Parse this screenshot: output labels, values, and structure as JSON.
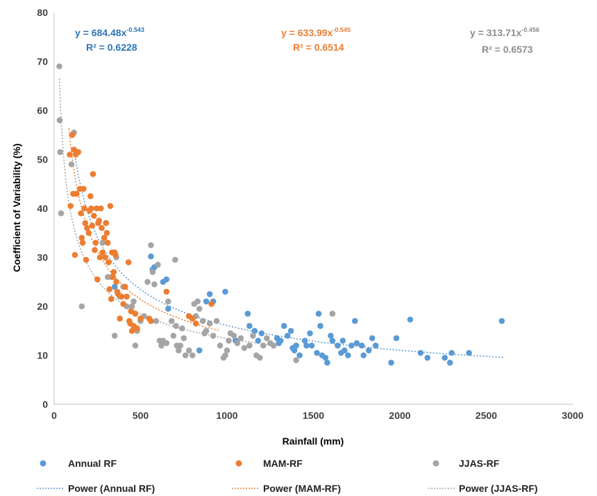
{
  "chart_data": {
    "type": "scatter",
    "title": "",
    "xlabel": "Rainfall (mm)",
    "ylabel": "Coefficient of Variability (%)",
    "xlim": [
      0,
      3000
    ],
    "ylim": [
      0,
      80
    ],
    "x_ticks": [
      "0",
      "500",
      "1000",
      "1500",
      "2000",
      "2500",
      "3000"
    ],
    "y_ticks": [
      "0",
      "10",
      "20",
      "30",
      "40",
      "50",
      "60",
      "70",
      "80"
    ],
    "grid": false,
    "legend_position": "bottom",
    "series": [
      {
        "name": "Annual RF",
        "color": "#5b9bd5",
        "trend_label": "Power (Annual RF)",
        "fit": {
          "a": 684.48,
          "b": -0.543,
          "x_range": [
            120,
            2600
          ]
        },
        "equation": {
          "prefix": "y = 684.48x",
          "exponent": "-0.543",
          "r2": "R² = 0.6228"
        },
        "points": [
          [
            350,
            24
          ],
          [
            560,
            30.2
          ],
          [
            570,
            27.5
          ],
          [
            580,
            28
          ],
          [
            630,
            25
          ],
          [
            650,
            25.5
          ],
          [
            660,
            19.5
          ],
          [
            840,
            11
          ],
          [
            880,
            21
          ],
          [
            900,
            22.5
          ],
          [
            920,
            21
          ],
          [
            990,
            23
          ],
          [
            1050,
            13
          ],
          [
            1120,
            18.5
          ],
          [
            1130,
            16
          ],
          [
            1160,
            15
          ],
          [
            1180,
            13
          ],
          [
            1200,
            14.5
          ],
          [
            1290,
            13.5
          ],
          [
            1300,
            12.5
          ],
          [
            1310,
            13
          ],
          [
            1330,
            16
          ],
          [
            1350,
            14
          ],
          [
            1370,
            15
          ],
          [
            1380,
            11.5
          ],
          [
            1390,
            11
          ],
          [
            1400,
            12
          ],
          [
            1420,
            10
          ],
          [
            1450,
            13
          ],
          [
            1460,
            12
          ],
          [
            1480,
            14.5
          ],
          [
            1490,
            12
          ],
          [
            1520,
            10.5
          ],
          [
            1530,
            18.5
          ],
          [
            1540,
            16
          ],
          [
            1550,
            10
          ],
          [
            1570,
            9.5
          ],
          [
            1580,
            8.5
          ],
          [
            1600,
            14
          ],
          [
            1610,
            13
          ],
          [
            1640,
            12
          ],
          [
            1660,
            10.5
          ],
          [
            1670,
            13
          ],
          [
            1680,
            11
          ],
          [
            1700,
            10
          ],
          [
            1720,
            12
          ],
          [
            1740,
            17
          ],
          [
            1750,
            12.5
          ],
          [
            1780,
            12
          ],
          [
            1790,
            10
          ],
          [
            1820,
            11
          ],
          [
            1840,
            13.5
          ],
          [
            1860,
            12
          ],
          [
            1950,
            8.5
          ],
          [
            1980,
            13.5
          ],
          [
            2060,
            17.3
          ],
          [
            2120,
            10.5
          ],
          [
            2160,
            9.5
          ],
          [
            2260,
            9.5
          ],
          [
            2290,
            8.5
          ],
          [
            2300,
            10.5
          ],
          [
            2400,
            10.5
          ],
          [
            2590,
            17
          ]
        ]
      },
      {
        "name": "MAM-RF",
        "color": "#ed7d31",
        "trend_label": "Power (MAM-RF)",
        "fit": {
          "a": 633.99,
          "b": -0.545,
          "x_range": [
            85,
            950
          ]
        },
        "equation": {
          "prefix": "y = 633.99x",
          "exponent": "-0.545",
          "r2": "R² = 0.6514"
        },
        "points": [
          [
            90,
            51
          ],
          [
            95,
            40.5
          ],
          [
            105,
            55
          ],
          [
            110,
            43
          ],
          [
            115,
            52
          ],
          [
            120,
            30.5
          ],
          [
            125,
            51
          ],
          [
            130,
            43
          ],
          [
            140,
            51.5
          ],
          [
            150,
            44
          ],
          [
            155,
            39
          ],
          [
            160,
            34
          ],
          [
            165,
            33
          ],
          [
            170,
            44
          ],
          [
            175,
            40
          ],
          [
            180,
            37
          ],
          [
            185,
            29.5
          ],
          [
            190,
            36
          ],
          [
            200,
            35
          ],
          [
            205,
            39.5
          ],
          [
            210,
            42.5
          ],
          [
            215,
            40
          ],
          [
            220,
            36.5
          ],
          [
            225,
            47
          ],
          [
            230,
            38.5
          ],
          [
            235,
            31.5
          ],
          [
            240,
            33
          ],
          [
            245,
            40
          ],
          [
            250,
            25.5
          ],
          [
            255,
            37
          ],
          [
            260,
            37.5
          ],
          [
            265,
            30
          ],
          [
            270,
            40
          ],
          [
            275,
            36
          ],
          [
            280,
            31
          ],
          [
            290,
            34
          ],
          [
            295,
            30
          ],
          [
            300,
            37
          ],
          [
            305,
            35
          ],
          [
            310,
            33
          ],
          [
            315,
            29
          ],
          [
            320,
            23.5
          ],
          [
            325,
            40.5
          ],
          [
            330,
            21.5
          ],
          [
            335,
            31
          ],
          [
            340,
            26
          ],
          [
            345,
            27
          ],
          [
            350,
            31
          ],
          [
            355,
            30.5
          ],
          [
            360,
            25
          ],
          [
            365,
            23
          ],
          [
            370,
            22.5
          ],
          [
            380,
            17.5
          ],
          [
            390,
            22
          ],
          [
            400,
            20.5
          ],
          [
            410,
            24
          ],
          [
            420,
            22
          ],
          [
            430,
            29
          ],
          [
            435,
            17
          ],
          [
            440,
            16.5
          ],
          [
            445,
            19
          ],
          [
            450,
            15
          ],
          [
            460,
            16
          ],
          [
            470,
            18.5
          ],
          [
            480,
            15.5
          ],
          [
            500,
            17.5
          ],
          [
            550,
            17.5
          ],
          [
            560,
            17
          ],
          [
            650,
            23
          ],
          [
            780,
            18
          ],
          [
            800,
            17.5
          ],
          [
            820,
            16.5
          ],
          [
            910,
            20.5
          ]
        ]
      },
      {
        "name": "JJAS-RF",
        "color": "#a5a5a5",
        "trend_label": "Power (JJAS-RF)",
        "fit": {
          "a": 313.71,
          "b": -0.456,
          "x_range": [
            30,
            1280
          ]
        },
        "equation": {
          "prefix": "y = 313.71x",
          "exponent": "-0.456",
          "r2": "R² = 0.6573"
        },
        "points": [
          [
            30,
            69
          ],
          [
            32,
            58
          ],
          [
            35,
            51.5
          ],
          [
            40,
            39
          ],
          [
            100,
            49
          ],
          [
            115,
            55.5
          ],
          [
            160,
            20
          ],
          [
            280,
            33
          ],
          [
            300,
            37
          ],
          [
            310,
            26
          ],
          [
            330,
            26
          ],
          [
            350,
            14
          ],
          [
            360,
            30
          ],
          [
            380,
            22
          ],
          [
            400,
            24
          ],
          [
            420,
            20
          ],
          [
            450,
            20
          ],
          [
            460,
            21
          ],
          [
            470,
            12
          ],
          [
            480,
            15
          ],
          [
            500,
            17
          ],
          [
            520,
            18
          ],
          [
            540,
            25
          ],
          [
            560,
            32.5
          ],
          [
            570,
            27
          ],
          [
            580,
            24.5
          ],
          [
            590,
            17
          ],
          [
            600,
            28.5
          ],
          [
            610,
            13
          ],
          [
            620,
            12
          ],
          [
            630,
            13
          ],
          [
            650,
            12.5
          ],
          [
            660,
            21
          ],
          [
            680,
            17
          ],
          [
            690,
            14
          ],
          [
            700,
            29.5
          ],
          [
            705,
            16
          ],
          [
            710,
            12
          ],
          [
            720,
            11
          ],
          [
            730,
            12
          ],
          [
            740,
            15.5
          ],
          [
            750,
            13.5
          ],
          [
            760,
            10
          ],
          [
            780,
            11
          ],
          [
            800,
            10
          ],
          [
            810,
            20.5
          ],
          [
            820,
            18
          ],
          [
            830,
            21
          ],
          [
            840,
            19.5
          ],
          [
            860,
            17
          ],
          [
            870,
            14.5
          ],
          [
            880,
            15
          ],
          [
            900,
            16.5
          ],
          [
            920,
            14
          ],
          [
            940,
            17
          ],
          [
            960,
            12
          ],
          [
            980,
            9.5
          ],
          [
            990,
            10
          ],
          [
            1000,
            11
          ],
          [
            1010,
            13
          ],
          [
            1020,
            14.5
          ],
          [
            1040,
            14
          ],
          [
            1060,
            12.5
          ],
          [
            1080,
            13.5
          ],
          [
            1100,
            11.5
          ],
          [
            1130,
            12
          ],
          [
            1150,
            14
          ],
          [
            1170,
            10
          ],
          [
            1190,
            9.5
          ],
          [
            1210,
            12
          ],
          [
            1230,
            13.5
          ],
          [
            1250,
            12.5
          ],
          [
            1270,
            12
          ],
          [
            1400,
            9
          ],
          [
            1610,
            18.5
          ]
        ]
      }
    ]
  }
}
